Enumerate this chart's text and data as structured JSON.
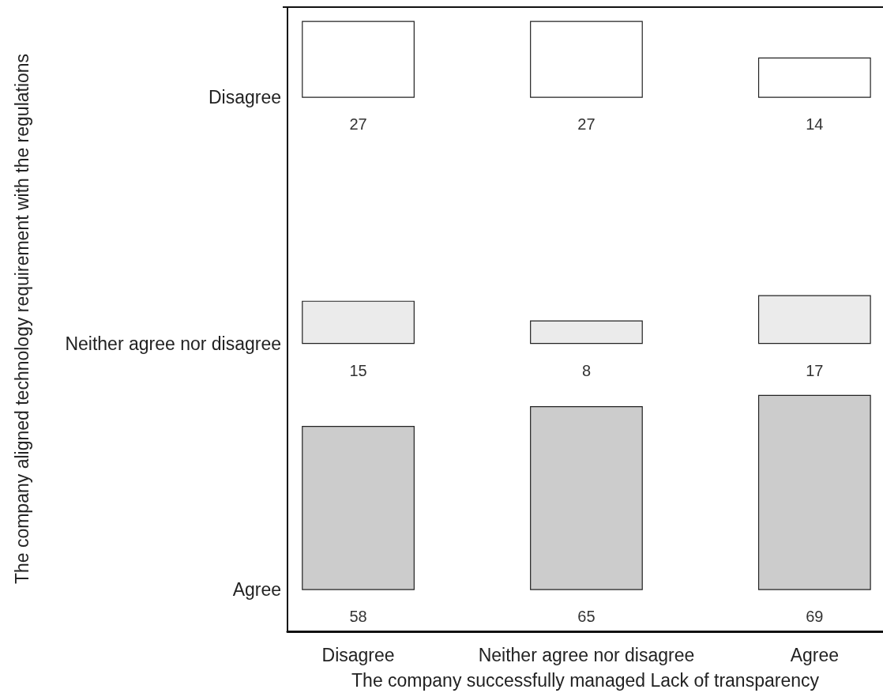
{
  "chart_data": {
    "type": "heatmap",
    "xlabel": "The company successfully managed Lack of transparency",
    "ylabel": "The company aligned technology requirement with the regulations",
    "categories": [
      "Disagree",
      "Neither agree nor disagree",
      "Agree"
    ],
    "y_categories": [
      "Disagree",
      "Neither agree nor disagree",
      "Agree"
    ],
    "cells": [
      [
        27,
        27,
        14
      ],
      [
        15,
        8,
        17
      ],
      [
        58,
        65,
        69
      ]
    ],
    "colors": [
      "#ffffff",
      "#ebebeb",
      "#cccccc"
    ],
    "data_labels": true
  }
}
